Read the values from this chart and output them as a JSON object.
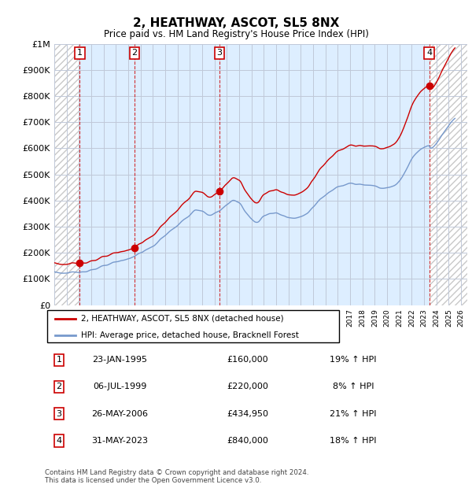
{
  "title": "2, HEATHWAY, ASCOT, SL5 8NX",
  "subtitle": "Price paid vs. HM Land Registry's House Price Index (HPI)",
  "ylim": [
    0,
    1000000
  ],
  "yticks": [
    0,
    100000,
    200000,
    300000,
    400000,
    500000,
    600000,
    700000,
    800000,
    900000,
    1000000
  ],
  "ytick_labels": [
    "£0",
    "£100K",
    "£200K",
    "£300K",
    "£400K",
    "£500K",
    "£600K",
    "£700K",
    "£800K",
    "£900K",
    "£1M"
  ],
  "xlim_start": 1993.0,
  "xlim_end": 2026.5,
  "sale_color": "#cc0000",
  "hpi_color": "#7799cc",
  "background_plot": "#ddeeff",
  "grid_color": "#c0c8d8",
  "hatch_color": "#c8c8c8",
  "sale_points": [
    {
      "year": 1995.06,
      "price": 160000,
      "label": "1"
    },
    {
      "year": 1999.51,
      "price": 220000,
      "label": "2"
    },
    {
      "year": 2006.4,
      "price": 434950,
      "label": "3"
    },
    {
      "year": 2023.41,
      "price": 840000,
      "label": "4"
    }
  ],
  "transactions": [
    {
      "num": "1",
      "date": "23-JAN-1995",
      "price": "£160,000",
      "hpi": "19% ↑ HPI"
    },
    {
      "num": "2",
      "date": "06-JUL-1999",
      "price": "£220,000",
      "hpi": "8% ↑ HPI"
    },
    {
      "num": "3",
      "date": "26-MAY-2006",
      "price": "£434,950",
      "hpi": "21% ↑ HPI"
    },
    {
      "num": "4",
      "date": "31-MAY-2023",
      "price": "£840,000",
      "hpi": "18% ↑ HPI"
    }
  ],
  "legend_property_label": "2, HEATHWAY, ASCOT, SL5 8NX (detached house)",
  "legend_hpi_label": "HPI: Average price, detached house, Bracknell Forest",
  "footer": "Contains HM Land Registry data © Crown copyright and database right 2024.\nThis data is licensed under the Open Government Licence v3.0."
}
